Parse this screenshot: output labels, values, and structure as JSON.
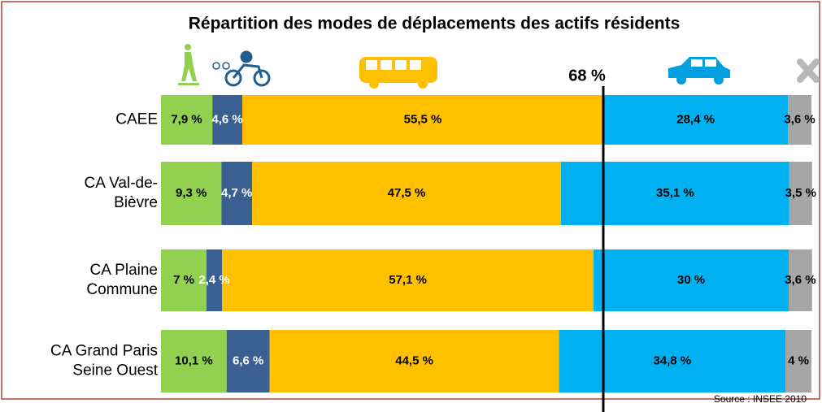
{
  "chart_data": {
    "type": "stacked_bar_horizontal",
    "title": "Répartition des modes de déplacements des actifs résidents",
    "source": "Source : INSEE 2010",
    "categories": [
      [
        "CAEE"
      ],
      [
        "CA Val-de-",
        "Bièvre"
      ],
      [
        "CA Plaine",
        "Commune"
      ],
      [
        "CA Grand Paris",
        "Seine Ouest"
      ]
    ],
    "xlim": [
      0,
      100
    ],
    "series": [
      {
        "color": "#92d050",
        "label_color": "#000000",
        "values": [
          7.9,
          9.3,
          7,
          10.1
        ],
        "value_labels": [
          "7,9 %",
          "9,3 %",
          "7 %",
          "10,1  %"
        ]
      },
      {
        "color": "#3a5f92",
        "label_color": "#ffffff",
        "values": [
          4.6,
          4.7,
          2.4,
          6.6
        ],
        "value_labels": [
          "4,6 %",
          "4,7 %",
          "2,4 %",
          "6,6 %"
        ]
      },
      {
        "color": "#ffc000",
        "label_color": "#000000",
        "values": [
          55.5,
          47.5,
          57.1,
          44.5
        ],
        "value_labels": [
          "55,5 %",
          "47,5 %",
          "57,1 %",
          "44,5 %"
        ]
      },
      {
        "color": "#00b0f0",
        "label_color": "#000000",
        "values": [
          28.4,
          35.1,
          30,
          34.8
        ],
        "value_labels": [
          "28,4 %",
          "35,1 %",
          "30 %",
          "34,8 %"
        ]
      },
      {
        "color": "#a6a6a6",
        "label_color": "#000000",
        "values": [
          3.6,
          3.5,
          3.6,
          4
        ],
        "value_labels": [
          "3,6 %",
          "3,5 %",
          "3,6 %",
          "4 %"
        ]
      }
    ],
    "reference": {
      "value": 68,
      "label": "68 %"
    }
  }
}
